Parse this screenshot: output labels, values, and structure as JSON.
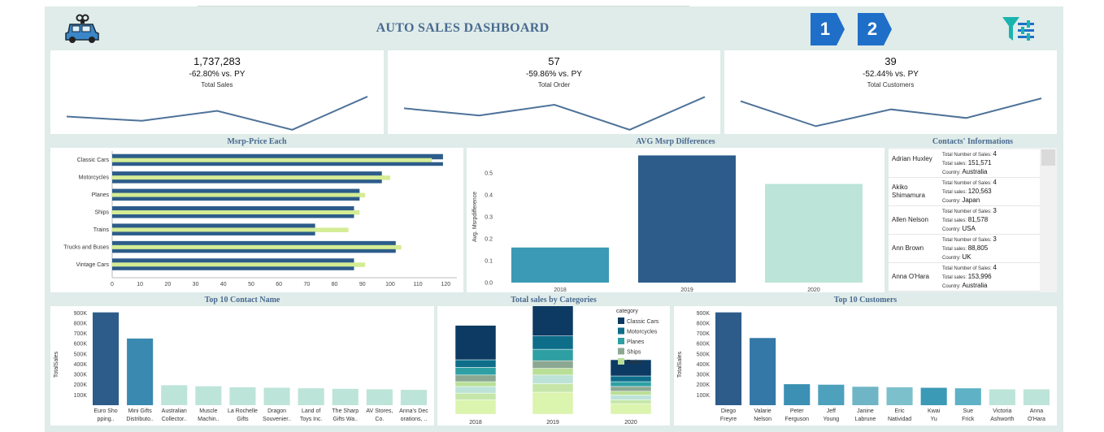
{
  "header": {
    "title": "AUTO SALES DASHBOARD",
    "page_buttons": [
      "1",
      "2"
    ],
    "logo_icon": "car-icon",
    "filter_icon": "filter-icon",
    "accent": "#1f6fc9"
  },
  "kpis": [
    {
      "value": "1,737,283",
      "pct": "-62.80% vs. PY",
      "label": "Total Sales",
      "trend": [
        0.42,
        0.3,
        0.58,
        0.05,
        0.98
      ]
    },
    {
      "value": "57",
      "pct": "-59.86% vs. PY",
      "label": "Total Order",
      "trend": [
        0.65,
        0.45,
        0.75,
        0.05,
        0.97
      ]
    },
    {
      "value": "39",
      "pct": "-52.44% vs. PY",
      "label": "Total Customers",
      "trend": [
        0.85,
        0.15,
        0.62,
        0.38,
        0.93
      ]
    }
  ],
  "panels": {
    "msrp_price": "Msrp-Price Each",
    "avg_msrp": "AVG Msrp Differences",
    "contacts": "Contacts' Informations",
    "top_contact": "Top 10 Contact Name",
    "sales_cat": "Total sales by Categories",
    "top_customers": "Top 10 Customers"
  },
  "contacts": {
    "labels": {
      "sales": "Total Number of Sales:",
      "total": "Total sales:",
      "country": "Country:"
    },
    "rows": [
      {
        "name": "Adrian Huxley",
        "num_sales": "4",
        "total_sales": "151,571",
        "country": "Australia"
      },
      {
        "name": "Akiko Shimamura",
        "num_sales": "4",
        "total_sales": "120,563",
        "country": "Japan"
      },
      {
        "name": "Allen Nelson",
        "num_sales": "3",
        "total_sales": "81,578",
        "country": "USA"
      },
      {
        "name": "Ann Brown",
        "num_sales": "3",
        "total_sales": "88,805",
        "country": "UK"
      },
      {
        "name": "Anna O'Hara",
        "num_sales": "4",
        "total_sales": "153,996",
        "country": "Australia"
      }
    ]
  },
  "chart_data": [
    {
      "type": "bar",
      "orientation": "horizontal",
      "title": "Msrp-Price Each",
      "categories": [
        "Classic Cars",
        "Motorcycles",
        "Planes",
        "Ships",
        "Trains",
        "Trucks and Buses",
        "Vintage Cars"
      ],
      "series": [
        {
          "values": [
            119,
            97,
            89,
            87,
            73,
            102,
            87
          ],
          "color": "#2d5c8a"
        },
        {
          "values": [
            115,
            100,
            91,
            89,
            85,
            104,
            91
          ],
          "color": "#d4ec94"
        }
      ],
      "xticks": [
        0,
        10,
        20,
        30,
        40,
        50,
        60,
        70,
        80,
        90,
        100,
        110,
        120
      ],
      "xlim": [
        0,
        124
      ]
    },
    {
      "type": "bar",
      "title": "AVG Msrp Differences",
      "categories": [
        "2018",
        "2019",
        "2020"
      ],
      "values": [
        0.16,
        0.58,
        0.45
      ],
      "colors": [
        "#3b9ab5",
        "#2d5c8a",
        "#bde4d9"
      ],
      "ylabel": "Avg. Msrpdifference",
      "yticks": [
        0.0,
        0.1,
        0.2,
        0.3,
        0.4,
        0.5
      ],
      "ylim": [
        0,
        0.6
      ]
    },
    {
      "type": "bar",
      "title": "Top 10 Contact Name",
      "ylabel": "TotalSales",
      "categories": [
        "Euro Sho pping..",
        "Mini Gifts Distributo..",
        "Australian Collector..",
        "Muscle Machin..",
        "La Rochelle Gifts",
        "Dragon Souvenier..",
        "Land of Toys Inc.",
        "The Sharp Gifts Wa..",
        "AV Stores, Co.",
        "Anna's Dec orations, .."
      ],
      "values": [
        905000,
        650000,
        195000,
        185000,
        175000,
        170000,
        165000,
        160000,
        155000,
        150000
      ],
      "colors": [
        "#2d5c8a",
        "#3989b0",
        "#bde4d9",
        "#bde4d9",
        "#bde4d9",
        "#bde4d9",
        "#bde4d9",
        "#bde4d9",
        "#bde4d9",
        "#bde4d9"
      ],
      "yticks": [
        "100K",
        "200K",
        "300K",
        "400K",
        "500K",
        "600K",
        "700K",
        "800K",
        "900K"
      ],
      "ylim": [
        0,
        950000
      ]
    },
    {
      "type": "bar",
      "stacked": true,
      "title": "Total sales by Categories",
      "legend_title": "category",
      "legend_position": "top-right",
      "categories": [
        "2018",
        "2019",
        "2020"
      ],
      "series": [
        {
          "name": "Classic Cars",
          "color": "#0c3a62",
          "values": [
            36,
            48,
            17
          ]
        },
        {
          "name": "Motorcycles",
          "color": "#0e6e8a",
          "values": [
            8,
            14,
            6
          ]
        },
        {
          "name": "Planes",
          "color": "#2ea0a4",
          "values": [
            8,
            12,
            5
          ]
        },
        {
          "name": "Ships",
          "color": "#8ca892",
          "values": [
            7,
            8,
            5
          ]
        },
        {
          "name": "Trains",
          "color": "#b9df97",
          "values": [
            5,
            7,
            4
          ]
        },
        {
          "values": [
            7,
            9,
            5
          ],
          "color": "#bde3d8"
        },
        {
          "values": [
            7,
            9,
            4
          ],
          "color": "#c5e6a8"
        },
        {
          "values": [
            15,
            23,
            11
          ],
          "color": "#dbf4ae"
        }
      ]
    },
    {
      "type": "bar",
      "title": "Top 10 Customers",
      "ylabel": "TotalSales",
      "categories": [
        "Diego Freyre",
        "Valarie Nelson",
        "Peter Ferguson",
        "Jeff Young",
        "Janine Labrune",
        "Eric Natividad",
        "Kwai Yu",
        "Sue Frick",
        "Victoria Ashworth",
        "Anna O'Hara"
      ],
      "values": [
        905000,
        655000,
        205000,
        200000,
        180000,
        175000,
        170000,
        165000,
        155000,
        155000
      ],
      "colors": [
        "#2d5c8a",
        "#3378a6",
        "#3b90b3",
        "#4da1bd",
        "#6fb5c6",
        "#7cc0cc",
        "#3b9ab5",
        "#5fb2c5",
        "#bde4d9",
        "#bde4d9"
      ],
      "yticks": [
        "100K",
        "200K",
        "300K",
        "400K",
        "500K",
        "600K",
        "700K",
        "800K",
        "900K"
      ],
      "ylim": [
        0,
        950000
      ]
    }
  ]
}
